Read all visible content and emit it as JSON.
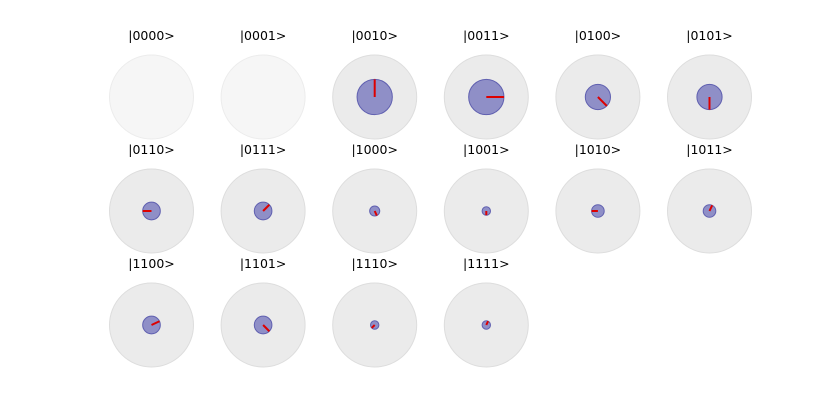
{
  "chart_data": {
    "type": "state-phase-circles",
    "states": [
      {
        "label": "|0000>",
        "amplitude": 0.0,
        "phase_deg": 0,
        "zero": true
      },
      {
        "label": "|0001>",
        "amplitude": 0.0,
        "phase_deg": 0,
        "zero": true
      },
      {
        "label": "|0010>",
        "amplitude": 0.42,
        "phase_deg": 90
      },
      {
        "label": "|0011>",
        "amplitude": 0.42,
        "phase_deg": 0
      },
      {
        "label": "|0100>",
        "amplitude": 0.3,
        "phase_deg": -45
      },
      {
        "label": "|0101>",
        "amplitude": 0.3,
        "phase_deg": -90
      },
      {
        "label": "|0110>",
        "amplitude": 0.21,
        "phase_deg": 180
      },
      {
        "label": "|0111>",
        "amplitude": 0.21,
        "phase_deg": 45
      },
      {
        "label": "|1000>",
        "amplitude": 0.12,
        "phase_deg": -65
      },
      {
        "label": "|1001>",
        "amplitude": 0.1,
        "phase_deg": -90
      },
      {
        "label": "|1010>",
        "amplitude": 0.15,
        "phase_deg": 180
      },
      {
        "label": "|1011>",
        "amplitude": 0.15,
        "phase_deg": 65
      },
      {
        "label": "|1100>",
        "amplitude": 0.21,
        "phase_deg": 25
      },
      {
        "label": "|1101>",
        "amplitude": 0.21,
        "phase_deg": -45
      },
      {
        "label": "|1110>",
        "amplitude": 0.1,
        "phase_deg": -135
      },
      {
        "label": "|1111>",
        "amplitude": 0.1,
        "phase_deg": 65
      }
    ],
    "columns": 6,
    "colors": {
      "outer_fill": "#ebebeb",
      "outer_stroke": "#dddddd",
      "zero_fill": "#f6f6f6",
      "zero_stroke": "#ececec",
      "amp_fill": "#8f8fc7",
      "amp_stroke": "#6060b0",
      "phase_line": "#dd0000"
    }
  }
}
